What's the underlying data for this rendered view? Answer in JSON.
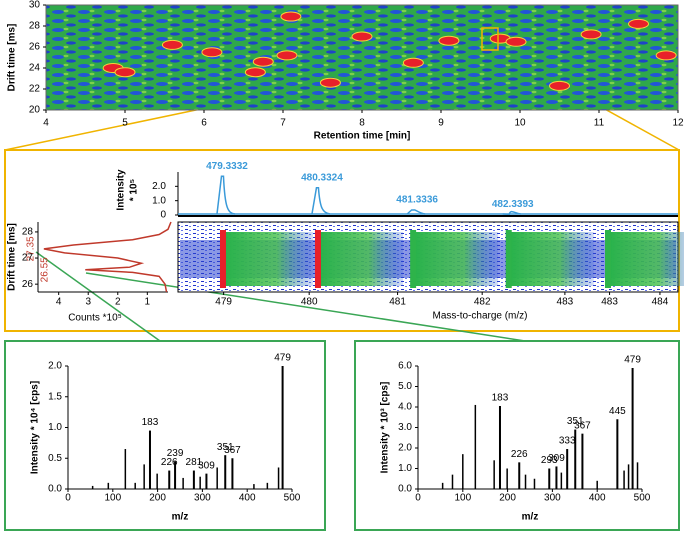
{
  "chart_data": [
    {
      "type": "heatmap",
      "xlabel": "Retention time [min]",
      "ylabel": "Drift time [ms]",
      "xlim": [
        4,
        12
      ],
      "xticks": [
        4,
        5,
        6,
        7,
        8,
        9,
        10,
        11,
        12
      ],
      "ylim": [
        20,
        30
      ],
      "yticks": [
        20,
        22,
        24,
        26,
        28,
        30
      ],
      "x": [
        4.85,
        5.0,
        6.75,
        6.65,
        7.1,
        7.05,
        6.1,
        8.65,
        9.1,
        9.75,
        9.95,
        10.5,
        11.5,
        11.85,
        5.6,
        8.0,
        10.9,
        7.6
      ],
      "y": [
        24.0,
        23.6,
        24.6,
        23.6,
        28.9,
        25.2,
        25.5,
        24.5,
        26.6,
        26.8,
        26.5,
        22.3,
        28.2,
        25.2,
        26.2,
        27.0,
        27.2,
        22.6
      ],
      "color": "#e8202a"
    },
    {
      "type": "spectrum",
      "ylabel": "Intensity",
      "ylabel2": "* 10⁵",
      "xlabel": "Mass-to-charge (m/z)",
      "x": [
        479.3332,
        480.3324,
        481.3336,
        482.3393
      ],
      "values": [
        2.7,
        1.9,
        0.35,
        0.05
      ],
      "color": "#3a9ad9",
      "xlim": [
        478.86,
        484.12
      ],
      "xticks": [
        {
          "value": 479.34,
          "label": "479"
        },
        {
          "value": 480.24,
          "label": "480"
        },
        {
          "value": 481.17,
          "label": "481"
        },
        {
          "value": 482.06,
          "label": "482"
        },
        {
          "value": 482.93,
          "label": "483"
        },
        {
          "value": 483.4,
          "label": "483"
        },
        {
          "value": 483.93,
          "label": "484"
        }
      ],
      "ylim": [
        0,
        3
      ],
      "yticks": [
        0,
        {
          "value": 1,
          "label": "1.0"
        },
        {
          "value": 2,
          "label": "2.0"
        }
      ]
    },
    {
      "type": "line",
      "ylabel": "Drift time [ms]",
      "xlabel": "Counts *10⁵",
      "color": "#c0392b",
      "drift": [
        25.7,
        26.0,
        26.3,
        26.45,
        26.55,
        26.65,
        26.8,
        27.0,
        27.2,
        27.35,
        27.5,
        27.7,
        27.9,
        28.1,
        28.38
      ],
      "values": [
        0.35,
        0.4,
        0.6,
        1.5,
        3.1,
        1.6,
        1.2,
        2.0,
        3.8,
        4.5,
        3.5,
        1.5,
        0.6,
        0.3,
        0.2
      ],
      "peak_labels": [
        27.35,
        26.55
      ],
      "xlim": [
        4.7,
        0.3
      ],
      "xticks": [
        4,
        3,
        2,
        1
      ],
      "ylim": [
        25.7,
        28.38
      ],
      "yticks": [
        26,
        27,
        28
      ]
    },
    {
      "type": "spectrum",
      "ylabel": "Intensity * 10⁴ [cps]",
      "xlabel": "m/z",
      "color": "#000000",
      "xlim": [
        0,
        500
      ],
      "xticks": [
        0,
        100,
        200,
        300,
        400,
        500
      ],
      "ylim": [
        0,
        2
      ],
      "yticks": [
        {
          "value": 0,
          "label": "0.0"
        },
        {
          "value": 0.5,
          "label": "0.5"
        },
        {
          "value": 1,
          "label": "1.0"
        },
        {
          "value": 1.5,
          "label": "1.5"
        },
        {
          "value": 2,
          "label": "2.0"
        }
      ],
      "x": [
        479,
        183,
        239,
        226,
        281,
        309,
        351,
        367
      ],
      "values": [
        2.0,
        0.95,
        0.45,
        0.3,
        0.3,
        0.25,
        0.55,
        0.5
      ],
      "minor_x": [
        55,
        90,
        128,
        150,
        170,
        199,
        257,
        295,
        333,
        415,
        445,
        470
      ],
      "minor_values": [
        0.05,
        0.1,
        0.65,
        0.1,
        0.4,
        0.25,
        0.18,
        0.2,
        0.35,
        0.08,
        0.1,
        0.35
      ]
    },
    {
      "type": "spectrum",
      "ylabel": "Intensity * 10³ [cps]",
      "xlabel": "m/z",
      "color": "#000000",
      "xlim": [
        0,
        500
      ],
      "xticks": [
        0,
        100,
        200,
        300,
        400,
        500
      ],
      "ylim": [
        0,
        6
      ],
      "yticks": [
        {
          "value": 0,
          "label": "0.0"
        },
        {
          "value": 1,
          "label": "1.0"
        },
        {
          "value": 2,
          "label": "2.0"
        },
        {
          "value": 3,
          "label": "3.0"
        },
        {
          "value": 4,
          "label": "4.0"
        },
        {
          "value": 5,
          "label": "5.0"
        },
        {
          "value": 6,
          "label": "6.0"
        }
      ],
      "x": [
        479,
        183,
        445,
        367,
        351,
        333,
        309,
        293,
        226
      ],
      "values": [
        5.9,
        4.05,
        3.4,
        2.7,
        2.9,
        1.95,
        1.1,
        1.0,
        1.3
      ],
      "minor_x": [
        55,
        77,
        100,
        128,
        170,
        199,
        240,
        260,
        320,
        400,
        460,
        470,
        490
      ],
      "minor_values": [
        0.3,
        0.7,
        1.7,
        4.1,
        1.4,
        1.0,
        0.7,
        0.5,
        0.8,
        0.4,
        0.9,
        1.2,
        1.3
      ]
    }
  ]
}
